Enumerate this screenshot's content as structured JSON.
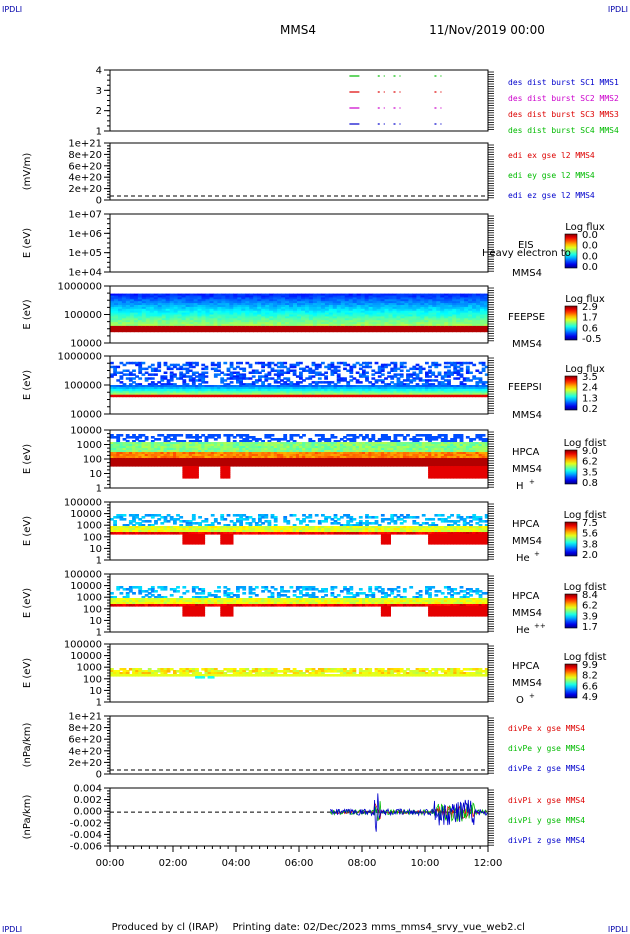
{
  "header": {
    "corner_tl": "IPDLI",
    "corner_tr": "IPDLI",
    "corner_bl": "IPDLI",
    "corner_br": "IPDLI",
    "title": "MMS4",
    "date": "11/Nov/2019 00:00"
  },
  "footer": {
    "produced_by": "Produced by cl (IRAP)",
    "printing_date": "Printing date: 02/Dec/2023",
    "file": "mms_mms4_srvy_vue_web2.cl"
  },
  "chart_data": {
    "type": "multi-panel time series",
    "x_ticks": [
      "00:00",
      "02:00",
      "04:00",
      "06:00",
      "08:00",
      "10:00",
      "12:00"
    ],
    "x_range_hours": [
      0,
      12
    ],
    "panels": [
      {
        "id": "burst",
        "type": "scatter",
        "yticks": [
          "4",
          "3",
          "2",
          "1"
        ],
        "legend": [
          {
            "label": "des dist burst SC1 MMS1",
            "color": "#0000cc"
          },
          {
            "label": "des dist burst SC2 MMS2",
            "color": "#cc00cc"
          },
          {
            "label": "des dist burst SC3 MMS3",
            "color": "#dd0000"
          },
          {
            "label": "des dist burst SC4 MMS4",
            "color": "#00bb00"
          }
        ],
        "segments_hours": [
          7.6,
          8.5,
          9.0,
          10.3
        ]
      },
      {
        "id": "edi",
        "type": "line",
        "ylabel": "(mV/m)",
        "yticks": [
          "1e+21",
          "8e+20",
          "6e+20",
          "4e+20",
          "2e+20",
          "0"
        ],
        "legend": [
          {
            "label": "edi ex gse l2 MMS4",
            "color": "#dd0000"
          },
          {
            "label": "edi ey gse l2 MMS4",
            "color": "#00bb00"
          },
          {
            "label": "edi ez gse l2 MMS4",
            "color": "#0000cc"
          }
        ]
      },
      {
        "id": "eis",
        "type": "heatmap",
        "ylabel": "E (eV)",
        "yticks": [
          "1e+07",
          "1e+06",
          "1e+05",
          "1e+04"
        ],
        "instrument": "EIS",
        "extra": "Heavy electron to",
        "sc": "MMS4",
        "cb_title": "Log flux",
        "cb_ticks": [
          "0.0",
          "0.0",
          "0.0",
          "0.0"
        ]
      },
      {
        "id": "feepse",
        "type": "heatmap",
        "ylabel": "E (eV)",
        "yticks": [
          "1000000",
          "100000",
          "10000"
        ],
        "instrument": "FEEPSE",
        "sc": "MMS4",
        "cb_title": "Log flux",
        "cb_ticks": [
          "2.9",
          "1.7",
          "0.6",
          "-0.5"
        ]
      },
      {
        "id": "feepsi",
        "type": "heatmap",
        "ylabel": "E (eV)",
        "yticks": [
          "1000000",
          "100000",
          "10000"
        ],
        "instrument": "FEEPSI",
        "sc": "MMS4",
        "cb_title": "Log flux",
        "cb_ticks": [
          "3.5",
          "2.4",
          "1.3",
          "0.2"
        ]
      },
      {
        "id": "hpca_h",
        "type": "heatmap",
        "ylabel": "E (eV)",
        "yticks": [
          "10000",
          "1000",
          "100",
          "10",
          "1"
        ],
        "instrument": "HPCA",
        "sc": "MMS4",
        "species": "H",
        "species_sup": "+",
        "cb_title": "Log fdist",
        "cb_ticks": [
          "9.0",
          "6.2",
          "3.5",
          "0.8"
        ]
      },
      {
        "id": "hpca_he",
        "type": "heatmap",
        "ylabel": "E (eV)",
        "yticks": [
          "100000",
          "10000",
          "1000",
          "100",
          "10",
          "1"
        ],
        "instrument": "HPCA",
        "sc": "MMS4",
        "species": "He",
        "species_sup": "+",
        "cb_title": "Log fdist",
        "cb_ticks": [
          "7.5",
          "5.6",
          "3.8",
          "2.0"
        ]
      },
      {
        "id": "hpca_he2",
        "type": "heatmap",
        "ylabel": "E (eV)",
        "yticks": [
          "100000",
          "10000",
          "1000",
          "100",
          "10",
          "1"
        ],
        "instrument": "HPCA",
        "sc": "MMS4",
        "species": "He",
        "species_sup": "++",
        "cb_title": "Log fdist",
        "cb_ticks": [
          "8.4",
          "6.2",
          "3.9",
          "1.7"
        ]
      },
      {
        "id": "hpca_o",
        "type": "heatmap",
        "ylabel": "E (eV)",
        "yticks": [
          "100000",
          "10000",
          "1000",
          "100",
          "10",
          "1"
        ],
        "instrument": "HPCA",
        "sc": "MMS4",
        "species": "O",
        "species_sup": "+",
        "cb_title": "Log fdist",
        "cb_ticks": [
          "9.9",
          "8.2",
          "6.6",
          "4.9"
        ]
      },
      {
        "id": "divpe",
        "type": "line",
        "ylabel": "(nPa/km)",
        "yticks": [
          "1e+21",
          "8e+20",
          "6e+20",
          "4e+20",
          "2e+20",
          "0"
        ],
        "legend": [
          {
            "label": "divPe x gse MMS4",
            "color": "#dd0000"
          },
          {
            "label": "divPe y gse MMS4",
            "color": "#00bb00"
          },
          {
            "label": "divPe z gse MMS4",
            "color": "#0000cc"
          }
        ]
      },
      {
        "id": "divpi",
        "type": "line",
        "ylabel": "(nPa/km)",
        "yticks": [
          "0.004",
          "0.002",
          "0.000",
          "-0.002",
          "-0.004",
          "-0.006"
        ],
        "ylim": [
          -0.007,
          0.005
        ],
        "legend": [
          {
            "label": "divPi x gse MMS4",
            "color": "#dd0000"
          },
          {
            "label": "divPi y gse MMS4",
            "color": "#00bb00"
          },
          {
            "label": "divPi z gse MMS4",
            "color": "#0000cc"
          }
        ],
        "data_start_hours": 7.0
      }
    ]
  }
}
